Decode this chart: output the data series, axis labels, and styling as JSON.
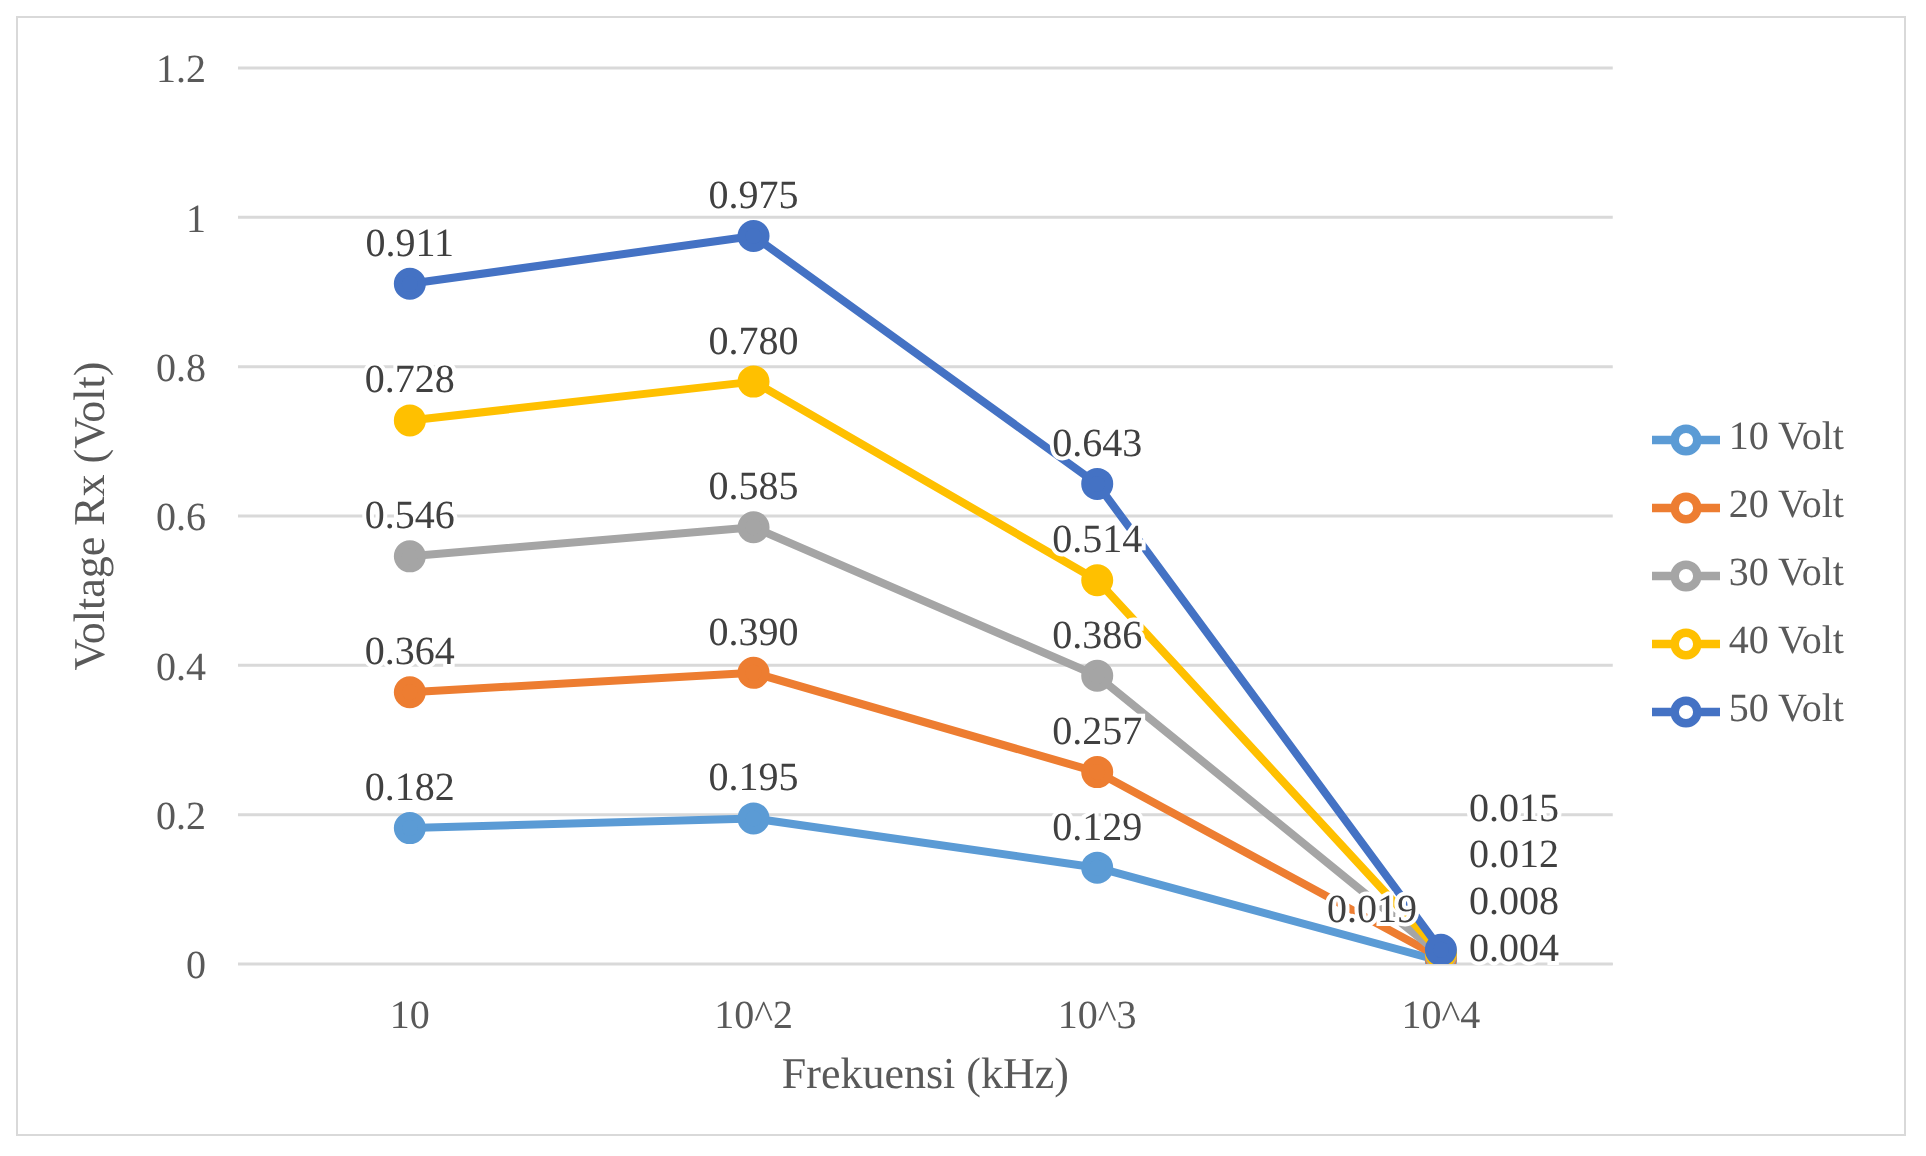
{
  "chart_data": {
    "type": "line",
    "xlabel": "Frekuensi (kHz)",
    "ylabel": "Voltage Rx (Volt)",
    "categories": [
      "10",
      "10^2",
      "10^3",
      "10^4"
    ],
    "series": [
      {
        "name": "10 Volt",
        "color": "#5b9bd5",
        "values": [
          0.182,
          0.195,
          0.129,
          0.004
        ],
        "value_labels": [
          "0.182",
          "0.195",
          "0.129",
          "0.004"
        ]
      },
      {
        "name": "20 Volt",
        "color": "#ed7d31",
        "values": [
          0.364,
          0.39,
          0.257,
          0.008
        ],
        "value_labels": [
          "0.364",
          "0.390",
          "0.257",
          "0.008"
        ]
      },
      {
        "name": "30 Volt",
        "color": "#a5a5a5",
        "values": [
          0.546,
          0.585,
          0.386,
          0.012
        ],
        "value_labels": [
          "0.546",
          "0.585",
          "0.386",
          "0.012"
        ]
      },
      {
        "name": "40 Volt",
        "color": "#ffc000",
        "values": [
          0.728,
          0.78,
          0.514,
          0.015
        ],
        "value_labels": [
          "0.728",
          "0.780",
          "0.514",
          "0.015"
        ]
      },
      {
        "name": "50 Volt",
        "color": "#4472c4",
        "values": [
          0.911,
          0.975,
          0.643,
          0.019
        ],
        "value_labels": [
          "0.911",
          "0.975",
          "0.643",
          "0.019"
        ]
      }
    ],
    "ylim": [
      0,
      1.2
    ],
    "yticks": [
      0,
      0.2,
      0.4,
      0.6,
      0.8,
      1,
      1.2
    ],
    "grid": "y",
    "legend": "right",
    "marker": "circle",
    "line_style": "solid"
  }
}
